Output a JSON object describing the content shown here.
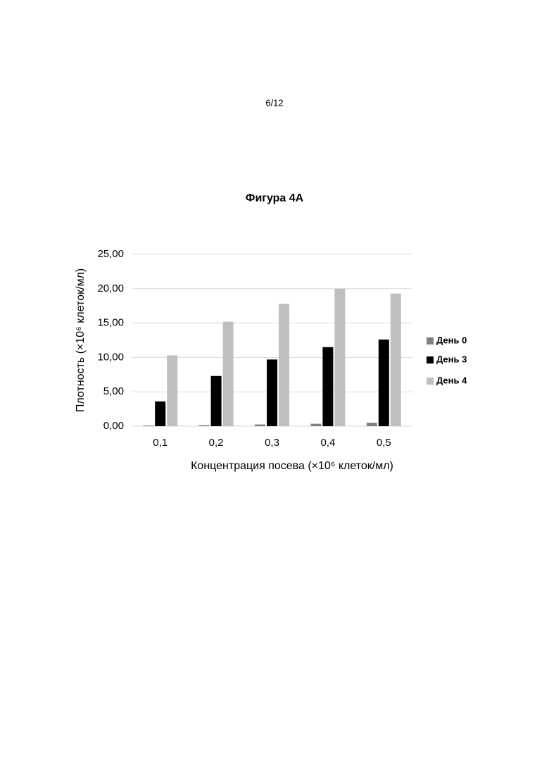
{
  "page_number": "6/12",
  "chart_data": {
    "type": "bar",
    "title": "Фигура 4А",
    "x_label": "Концентрация посева (×10⁶ клеток/мл)",
    "y_label": "Плотность (×10⁶ клеток/мл)",
    "categories": [
      "0,1",
      "0,2",
      "0,3",
      "0,4",
      "0,5"
    ],
    "series": [
      {
        "name": "День 0",
        "color": "#7f7f7f",
        "values": [
          0.1,
          0.15,
          0.25,
          0.35,
          0.5
        ]
      },
      {
        "name": "День 3",
        "color": "#000000",
        "values": [
          3.6,
          7.3,
          9.7,
          11.5,
          12.6
        ]
      },
      {
        "name": "День 4",
        "color": "#bfbfbf",
        "values": [
          10.3,
          15.2,
          17.8,
          20.0,
          19.3
        ]
      }
    ],
    "ylim": [
      0,
      25
    ],
    "yticks": [
      {
        "value": 0,
        "label": "0,00"
      },
      {
        "value": 5,
        "label": "5,00"
      },
      {
        "value": 10,
        "label": "10,00"
      },
      {
        "value": 15,
        "label": "15,00"
      },
      {
        "value": 20,
        "label": "20,00"
      },
      {
        "value": 25,
        "label": "25,00"
      }
    ],
    "grid": true,
    "legend": "right"
  }
}
